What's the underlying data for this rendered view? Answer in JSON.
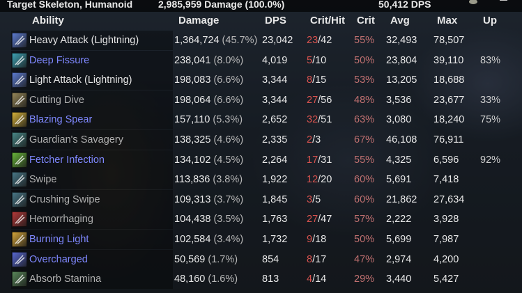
{
  "header": {
    "target": "Target Skeleton, Humanoid",
    "damage": "2,985,959 Damage (100.0%)",
    "dps": "50,412 DPS"
  },
  "columns": {
    "ability": "Ability",
    "damage": "Damage",
    "dps": "DPS",
    "crithit": "Crit/Hit",
    "crit": "Crit",
    "avg": "Avg",
    "max": "Max",
    "up": "Up"
  },
  "colors": {
    "skill_name": "#7f88ff",
    "crit_count": "#d9534f",
    "crit_pct": "#c07070"
  },
  "rows": [
    {
      "name": "Heavy Attack (Lightning)",
      "color": "#e6e6e6",
      "icon": "heavy-attack-icon",
      "iconColor": "#5f7fd6",
      "damage": "1,364,724",
      "pct": "(45.7%)",
      "dps": "23,042",
      "crits": "23",
      "hits": "42",
      "critp": "55%",
      "avg": "32,493",
      "max": "78,507",
      "up": ""
    },
    {
      "name": "Deep Fissure",
      "color": "#7f88ff",
      "icon": "deep-fissure-icon",
      "iconColor": "#3fa6b8",
      "damage": "238,041",
      "pct": "(8.0%)",
      "dps": "4,019",
      "crits": "5",
      "hits": "10",
      "critp": "50%",
      "avg": "23,804",
      "max": "39,110",
      "up": "83%"
    },
    {
      "name": "Light Attack (Lightning)",
      "color": "#e6e6e6",
      "icon": "light-attack-icon",
      "iconColor": "#5f7fd6",
      "damage": "198,083",
      "pct": "(6.6%)",
      "dps": "3,344",
      "crits": "8",
      "hits": "15",
      "critp": "53%",
      "avg": "13,205",
      "max": "18,688",
      "up": ""
    },
    {
      "name": "Cutting Dive",
      "color": "#b0b0b0",
      "icon": "cutting-dive-icon",
      "iconColor": "#9a8a5a",
      "damage": "198,064",
      "pct": "(6.6%)",
      "dps": "3,344",
      "crits": "27",
      "hits": "56",
      "critp": "48%",
      "avg": "3,536",
      "max": "23,677",
      "up": "33%"
    },
    {
      "name": "Blazing Spear",
      "color": "#7f88ff",
      "icon": "blazing-spear-icon",
      "iconColor": "#d9b43a",
      "damage": "157,110",
      "pct": "(5.3%)",
      "dps": "2,652",
      "crits": "32",
      "hits": "51",
      "critp": "63%",
      "avg": "3,080",
      "max": "18,240",
      "up": "75%"
    },
    {
      "name": "Guardian's Savagery",
      "color": "#b0b0b0",
      "icon": "guardians-savagery-icon",
      "iconColor": "#4a8a8a",
      "damage": "138,325",
      "pct": "(4.6%)",
      "dps": "2,335",
      "crits": "2",
      "hits": "3",
      "critp": "67%",
      "avg": "46,108",
      "max": "76,911",
      "up": ""
    },
    {
      "name": "Fetcher Infection",
      "color": "#7f88ff",
      "icon": "fetcher-infection-icon",
      "iconColor": "#6ab83a",
      "damage": "134,102",
      "pct": "(4.5%)",
      "dps": "2,264",
      "crits": "17",
      "hits": "31",
      "critp": "55%",
      "avg": "4,325",
      "max": "6,596",
      "up": "92%"
    },
    {
      "name": "Swipe",
      "color": "#b0b0b0",
      "icon": "swipe-icon",
      "iconColor": "#4a7a8a",
      "damage": "113,836",
      "pct": "(3.8%)",
      "dps": "1,922",
      "crits": "12",
      "hits": "20",
      "critp": "60%",
      "avg": "5,691",
      "max": "7,418",
      "up": ""
    },
    {
      "name": "Crushing Swipe",
      "color": "#b0b0b0",
      "icon": "crushing-swipe-icon",
      "iconColor": "#4a7a8a",
      "damage": "109,313",
      "pct": "(3.7%)",
      "dps": "1,845",
      "crits": "3",
      "hits": "5",
      "critp": "60%",
      "avg": "21,862",
      "max": "27,634",
      "up": ""
    },
    {
      "name": "Hemorrhaging",
      "color": "#b0b0b0",
      "icon": "hemorrhaging-icon",
      "iconColor": "#b83a3a",
      "damage": "104,438",
      "pct": "(3.5%)",
      "dps": "1,763",
      "crits": "27",
      "hits": "47",
      "critp": "57%",
      "avg": "2,222",
      "max": "3,928",
      "up": ""
    },
    {
      "name": "Burning Light",
      "color": "#7f88ff",
      "icon": "burning-light-icon",
      "iconColor": "#d9a83a",
      "damage": "102,584",
      "pct": "(3.4%)",
      "dps": "1,732",
      "crits": "9",
      "hits": "18",
      "critp": "50%",
      "avg": "5,699",
      "max": "7,987",
      "up": ""
    },
    {
      "name": "Overcharged",
      "color": "#7f88ff",
      "icon": "overcharged-icon",
      "iconColor": "#5a6ad6",
      "damage": "50,569",
      "pct": "(1.7%)",
      "dps": "854",
      "crits": "8",
      "hits": "17",
      "critp": "47%",
      "avg": "2,974",
      "max": "4,200",
      "up": ""
    },
    {
      "name": "Absorb Stamina",
      "color": "#b0b0b0",
      "icon": "absorb-stamina-icon",
      "iconColor": "#5a8a5a",
      "damage": "48,160",
      "pct": "(1.6%)",
      "dps": "813",
      "crits": "4",
      "hits": "14",
      "critp": "29%",
      "avg": "3,440",
      "max": "5,427",
      "up": ""
    }
  ]
}
